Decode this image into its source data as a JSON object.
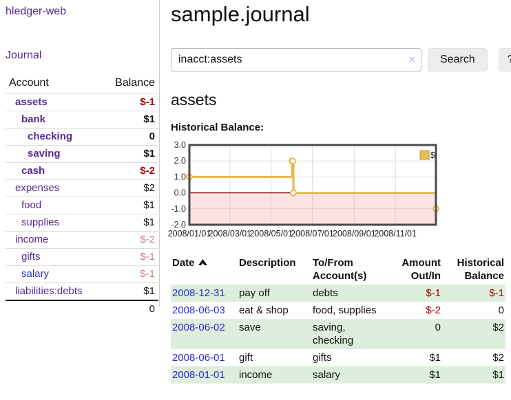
{
  "app": {
    "title": "hledger-web"
  },
  "colors": {
    "link_purple": "#552a90",
    "link_blue": "#2b2bd0",
    "negative_strong": "#a40000",
    "negative_weak": "#c58282",
    "row_green": "#ddeedd",
    "chart_gold": "#e3b94e"
  },
  "sidebar": {
    "journal_label": "Journal",
    "accounts_table": {
      "headers": {
        "account": "Account",
        "balance": "Balance"
      },
      "rows": [
        {
          "name": "assets",
          "depth": 1,
          "bold": true,
          "balance": "$-1"
        },
        {
          "name": "bank",
          "depth": 2,
          "bold": true,
          "balance": "$1"
        },
        {
          "name": "checking",
          "depth": 3,
          "bold": true,
          "balance": "0"
        },
        {
          "name": "saving",
          "depth": 3,
          "bold": true,
          "balance": "$1"
        },
        {
          "name": "cash",
          "depth": 2,
          "bold": true,
          "balance": "$-2"
        },
        {
          "name": "expenses",
          "depth": 1,
          "bold": false,
          "balance": "$2"
        },
        {
          "name": "food",
          "depth": 2,
          "bold": false,
          "balance": "$1"
        },
        {
          "name": "supplies",
          "depth": 2,
          "bold": false,
          "balance": "$1"
        },
        {
          "name": "income",
          "depth": 1,
          "bold": false,
          "balance": "$-2"
        },
        {
          "name": "gifts",
          "depth": 2,
          "bold": false,
          "balance": "$-1"
        },
        {
          "name": "salary",
          "depth": 2,
          "bold": false,
          "balance": "$-1",
          "unvisited": true
        },
        {
          "name": "liabilities:debts",
          "depth": 1,
          "bold": false,
          "balance": "$1"
        }
      ],
      "total": "0"
    }
  },
  "main": {
    "title": "sample.journal",
    "search": {
      "value": "inacct:assets",
      "clear_icon": "×",
      "button_label": "Search",
      "help_label": "?"
    },
    "account_heading": "assets",
    "chart_label": "Historical Balance:"
  },
  "chart_data": {
    "type": "line",
    "title": "Historical Balance",
    "step": true,
    "series": [
      {
        "name": "$",
        "color": "#e3b94e",
        "points": [
          [
            "2008-01-01",
            1
          ],
          [
            "2008-06-01",
            2
          ],
          [
            "2008-06-02",
            2
          ],
          [
            "2008-06-03",
            0
          ],
          [
            "2008-12-31",
            -1
          ]
        ]
      }
    ],
    "x_range": [
      "2008-01-01",
      "2008-12-31"
    ],
    "x_ticks": [
      "2008/01/01",
      "2008/03/01",
      "2008/05/01",
      "2008/07/01",
      "2008/09/01",
      "2008/11/01"
    ],
    "y_ticks": [
      3.0,
      2.0,
      1.0,
      0.0,
      -1.0,
      -2.0
    ],
    "ylim": [
      -2,
      3
    ],
    "grid": true,
    "zero_line_color": "#8b0000",
    "negative_region_fill": "#fbe3e3",
    "legend": {
      "position": "top-right",
      "label": "$",
      "swatch_color": "#e8c051"
    }
  },
  "register": {
    "headers": {
      "date": "Date",
      "description": "Description",
      "accounts": "To/From Account(s)",
      "amount": "Amount Out/In",
      "balance": "Historical Balance"
    },
    "sort": {
      "column": "date",
      "direction": "up"
    },
    "rows": [
      {
        "date": "2008-12-31",
        "description": "pay off",
        "accounts": "debts",
        "amount": "$-1",
        "balance": "$-1"
      },
      {
        "date": "2008-06-03",
        "description": "eat & shop",
        "accounts": "food, supplies",
        "amount": "$-2",
        "balance": "0"
      },
      {
        "date": "2008-06-02",
        "description": "save",
        "accounts": "saving, checking",
        "amount": "0",
        "balance": "$2"
      },
      {
        "date": "2008-06-01",
        "description": "gift",
        "accounts": "gifts",
        "amount": "$1",
        "balance": "$2"
      },
      {
        "date": "2008-01-01",
        "description": "income",
        "accounts": "salary",
        "amount": "$1",
        "balance": "$1"
      }
    ]
  }
}
